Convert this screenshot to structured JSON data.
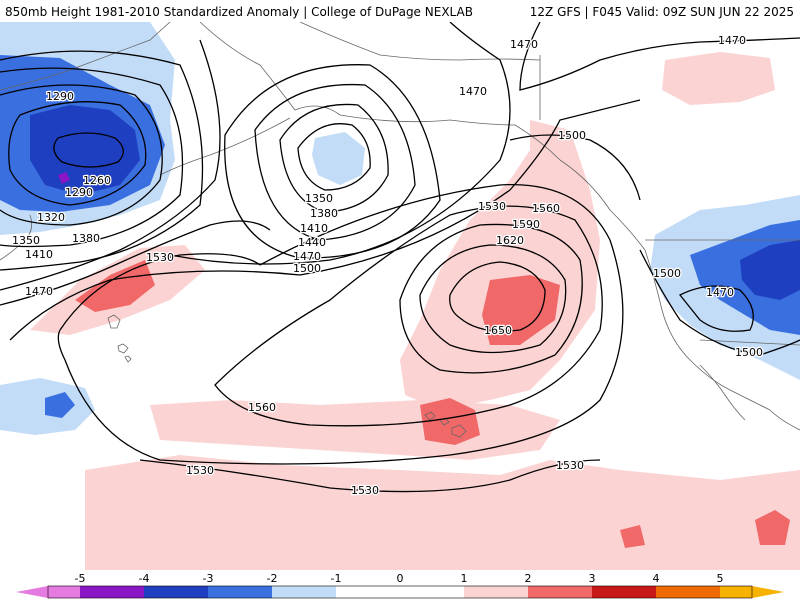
{
  "header": {
    "title_left": "850mb Height 1981-2010 Standardized Anomaly | College of DuPage NEXLAB",
    "title_right": "12Z GFS | F045 Valid: 09Z SUN JUN 22 2025"
  },
  "colors": {
    "neg5": "#e57ae0",
    "neg4": "#8a16c6",
    "neg3": "#1e3fbf",
    "neg2": "#3a6fe0",
    "neg1": "#c2dcf8",
    "pos1": "#fbd3d3",
    "pos2": "#f06868",
    "pos3": "#c81818",
    "pos4": "#f06a00",
    "pos5": "#f7b200",
    "contour": "#000000",
    "coast": "#666666",
    "background": "#ffffff"
  },
  "legend": {
    "ticks": [
      "-5",
      "-4",
      "-3",
      "-2",
      "-1",
      "0",
      "1",
      "2",
      "3",
      "4",
      "5"
    ]
  },
  "contour_labels": [
    "1290",
    "1260",
    "1290",
    "1320",
    "1350",
    "1380",
    "1410",
    "1470",
    "1350",
    "1380",
    "1410",
    "1440",
    "1470",
    "1500",
    "1470",
    "1470",
    "1470",
    "1500",
    "1530",
    "1560",
    "1590",
    "1620",
    "1650",
    "1530",
    "1560",
    "1530",
    "1530",
    "1530",
    "1500",
    "1470",
    "1500"
  ]
}
